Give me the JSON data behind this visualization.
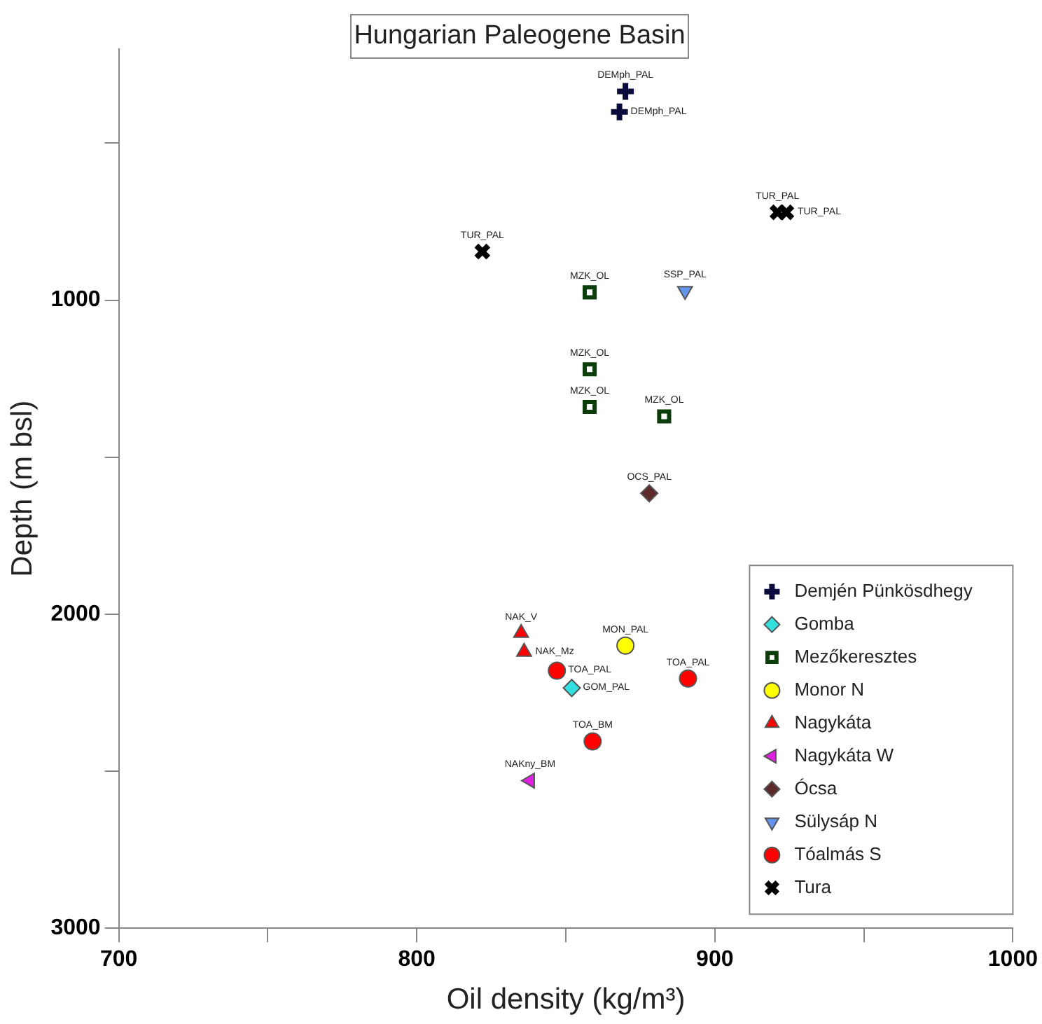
{
  "chart_data": {
    "type": "scatter",
    "title": "Hungarian Paleogene Basin",
    "xlabel": "Oil density (kg/m³)",
    "ylabel": "Depth (m bsl)",
    "xlim": [
      700,
      1000
    ],
    "xticks": [
      700,
      {
        "value": 750,
        "label": null
      },
      800,
      {
        "value": 850,
        "label": null
      },
      900,
      {
        "value": 950,
        "label": null
      },
      1000
    ],
    "ylim": [
      3000,
      200
    ],
    "yticks": [
      {
        "value": 500,
        "label": null
      },
      1000,
      {
        "value": 1500,
        "label": null
      },
      2000,
      {
        "value": 2500,
        "label": null
      },
      3000
    ],
    "grid": false,
    "legend": "bottom right",
    "series": [
      {
        "name": "Demjén Pünkösdhegy",
        "color": "#0a0a3c",
        "marker": "plus",
        "x": [
          870,
          868
        ],
        "values": [
          335,
          400
        ]
      },
      {
        "name": "Gomba",
        "color": "#33e0e0",
        "marker": "diamond",
        "x": [
          852
        ],
        "values": [
          2235
        ]
      },
      {
        "name": "Mezőkeresztes",
        "color": "#0b3d0b",
        "marker": "square-open",
        "x": [
          858,
          858,
          858,
          883
        ],
        "values": [
          975,
          1220,
          1340,
          1370
        ]
      },
      {
        "name": "Monor N",
        "color": "#ffff00",
        "marker": "circle",
        "x": [
          870
        ],
        "values": [
          2100
        ]
      },
      {
        "name": "Nagykáta",
        "color": "#ff0000",
        "marker": "triangle",
        "x": [
          835,
          836
        ],
        "values": [
          2060,
          2120
        ]
      },
      {
        "name": "Nagykáta W",
        "color": "#e020e0",
        "marker": "triangle-left",
        "x": [
          838
        ],
        "values": [
          2530
        ]
      },
      {
        "name": "Ócsa",
        "color": "#5c2a2a",
        "marker": "diamond",
        "x": [
          878
        ],
        "values": [
          1615
        ]
      },
      {
        "name": "Sülysáp N",
        "color": "#6495ed",
        "marker": "triangle-down",
        "x": [
          890
        ],
        "values": [
          970
        ]
      },
      {
        "name": "Tóalmás S",
        "color": "#ff0000",
        "marker": "circle",
        "x": [
          847,
          891,
          859
        ],
        "values": [
          2180,
          2205,
          2405
        ]
      },
      {
        "name": "Tura",
        "color": "#000000",
        "marker": "cross",
        "x": [
          921,
          924,
          822
        ],
        "values": [
          720,
          720,
          845
        ]
      }
    ],
    "annotations": [
      {
        "text": "DEMph_PAL",
        "x": 870,
        "y": 335
      },
      {
        "text": "DEMph_PAL",
        "x": 868,
        "y": 400
      },
      {
        "text": "TUR_PAL",
        "x": 921,
        "y": 720
      },
      {
        "text": "TUR_PAL",
        "x": 924,
        "y": 720
      },
      {
        "text": "TUR_PAL",
        "x": 822,
        "y": 845
      },
      {
        "text": "MZK_OL",
        "x": 858,
        "y": 975
      },
      {
        "text": "SSP_PAL",
        "x": 890,
        "y": 970
      },
      {
        "text": "MZK_OL",
        "x": 858,
        "y": 1220
      },
      {
        "text": "MZK_OL",
        "x": 858,
        "y": 1340
      },
      {
        "text": "MZK_OL",
        "x": 883,
        "y": 1370
      },
      {
        "text": "OCS_PAL",
        "x": 878,
        "y": 1615
      },
      {
        "text": "NAK_V",
        "x": 835,
        "y": 2060
      },
      {
        "text": "NAK_Mz",
        "x": 836,
        "y": 2120
      },
      {
        "text": "MON_PAL",
        "x": 870,
        "y": 2100
      },
      {
        "text": "TOA_PAL",
        "x": 847,
        "y": 2180
      },
      {
        "text": "GOM_PAL",
        "x": 852,
        "y": 2235
      },
      {
        "text": "TOA_PAL",
        "x": 891,
        "y": 2205
      },
      {
        "text": "TOA_BM",
        "x": 859,
        "y": 2405
      },
      {
        "text": "NAKny_BM",
        "x": 838,
        "y": 2530
      }
    ]
  }
}
